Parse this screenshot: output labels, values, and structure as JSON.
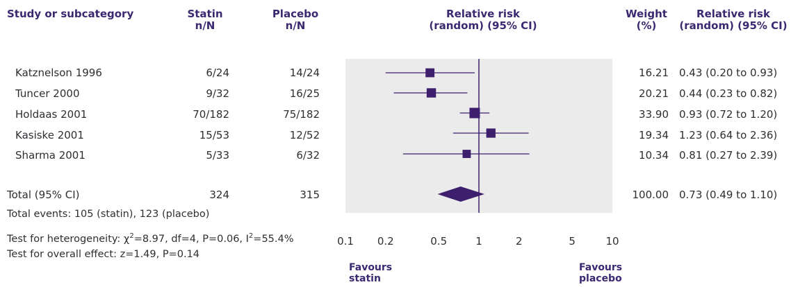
{
  "header": {
    "study": "Study or subcategory",
    "statin": [
      "Statin",
      "n/N"
    ],
    "placebo": [
      "Placebo",
      "n/N"
    ],
    "rr_plot": [
      "Relative risk",
      "(random) (95% CI)"
    ],
    "weight": [
      "Weight",
      "(%)"
    ],
    "rr_text": [
      "Relative risk",
      "(random) (95% CI)"
    ]
  },
  "studies": [
    {
      "name": "Katznelson 1996",
      "statin": "6/24",
      "placebo": "14/24",
      "weight": "16.21",
      "rr_text": "0.43 (0.20 to 0.93)"
    },
    {
      "name": "Tuncer 2000",
      "statin": "9/32",
      "placebo": "16/25",
      "weight": "20.21",
      "rr_text": "0.44 (0.23 to 0.82)"
    },
    {
      "name": "Holdaas 2001",
      "statin": "70/182",
      "placebo": "75/182",
      "weight": "33.90",
      "rr_text": "0.93 (0.72 to 1.20)"
    },
    {
      "name": "Kasiske 2001",
      "statin": "15/53",
      "placebo": "12/52",
      "weight": "19.34",
      "rr_text": "1.23 (0.64 to 2.36)"
    },
    {
      "name": "Sharma 2001",
      "statin": "5/33",
      "placebo": "6/32",
      "weight": "10.34",
      "rr_text": "0.81 (0.27 to 2.39)"
    }
  ],
  "total": {
    "label": "Total (95% CI)",
    "statin": "324",
    "placebo": "315",
    "weight": "100.00",
    "rr_text": "0.73 (0.49 to 1.10)"
  },
  "footer": {
    "events": "Total events: 105 (statin), 123 (placebo)",
    "heterogeneity_prefix": "Test for heterogeneity: ",
    "chi": "χ",
    "chi_sup": "2",
    "heterogeneity_mid": "=8.97, df=4, P=0.06, I",
    "i_sup": "2",
    "heterogeneity_end": "=55.4%",
    "overall": "Test for overall effect: z=1.49, P=0.14"
  },
  "favours_left": [
    "Favours",
    "statin"
  ],
  "favours_right": [
    "Favours",
    "placebo"
  ],
  "colors": {
    "marker": "#3d1f6e",
    "panel": "#ebebeb",
    "text": "#2e2e33",
    "header": "#3a2870"
  },
  "chart_data": {
    "type": "forest",
    "scale": "log",
    "xlim": [
      0.1,
      10
    ],
    "x_ticks": [
      "0.1",
      "0.2",
      "0.5",
      "1",
      "2",
      "5",
      "10"
    ],
    "x_tick_values": [
      0.1,
      0.2,
      0.5,
      1,
      2,
      5,
      10
    ],
    "reference_line": 1,
    "studies": [
      {
        "name": "Katznelson 1996",
        "rr": 0.43,
        "lo": 0.2,
        "hi": 0.93,
        "weight": 16.21
      },
      {
        "name": "Tuncer 2000",
        "rr": 0.44,
        "lo": 0.23,
        "hi": 0.82,
        "weight": 20.21
      },
      {
        "name": "Holdaas 2001",
        "rr": 0.93,
        "lo": 0.72,
        "hi": 1.2,
        "weight": 33.9
      },
      {
        "name": "Kasiske 2001",
        "rr": 1.23,
        "lo": 0.64,
        "hi": 2.36,
        "weight": 19.34
      },
      {
        "name": "Sharma 2001",
        "rr": 0.81,
        "lo": 0.27,
        "hi": 2.39,
        "weight": 10.34
      }
    ],
    "pooled": {
      "rr": 0.73,
      "lo": 0.49,
      "hi": 1.1
    }
  }
}
